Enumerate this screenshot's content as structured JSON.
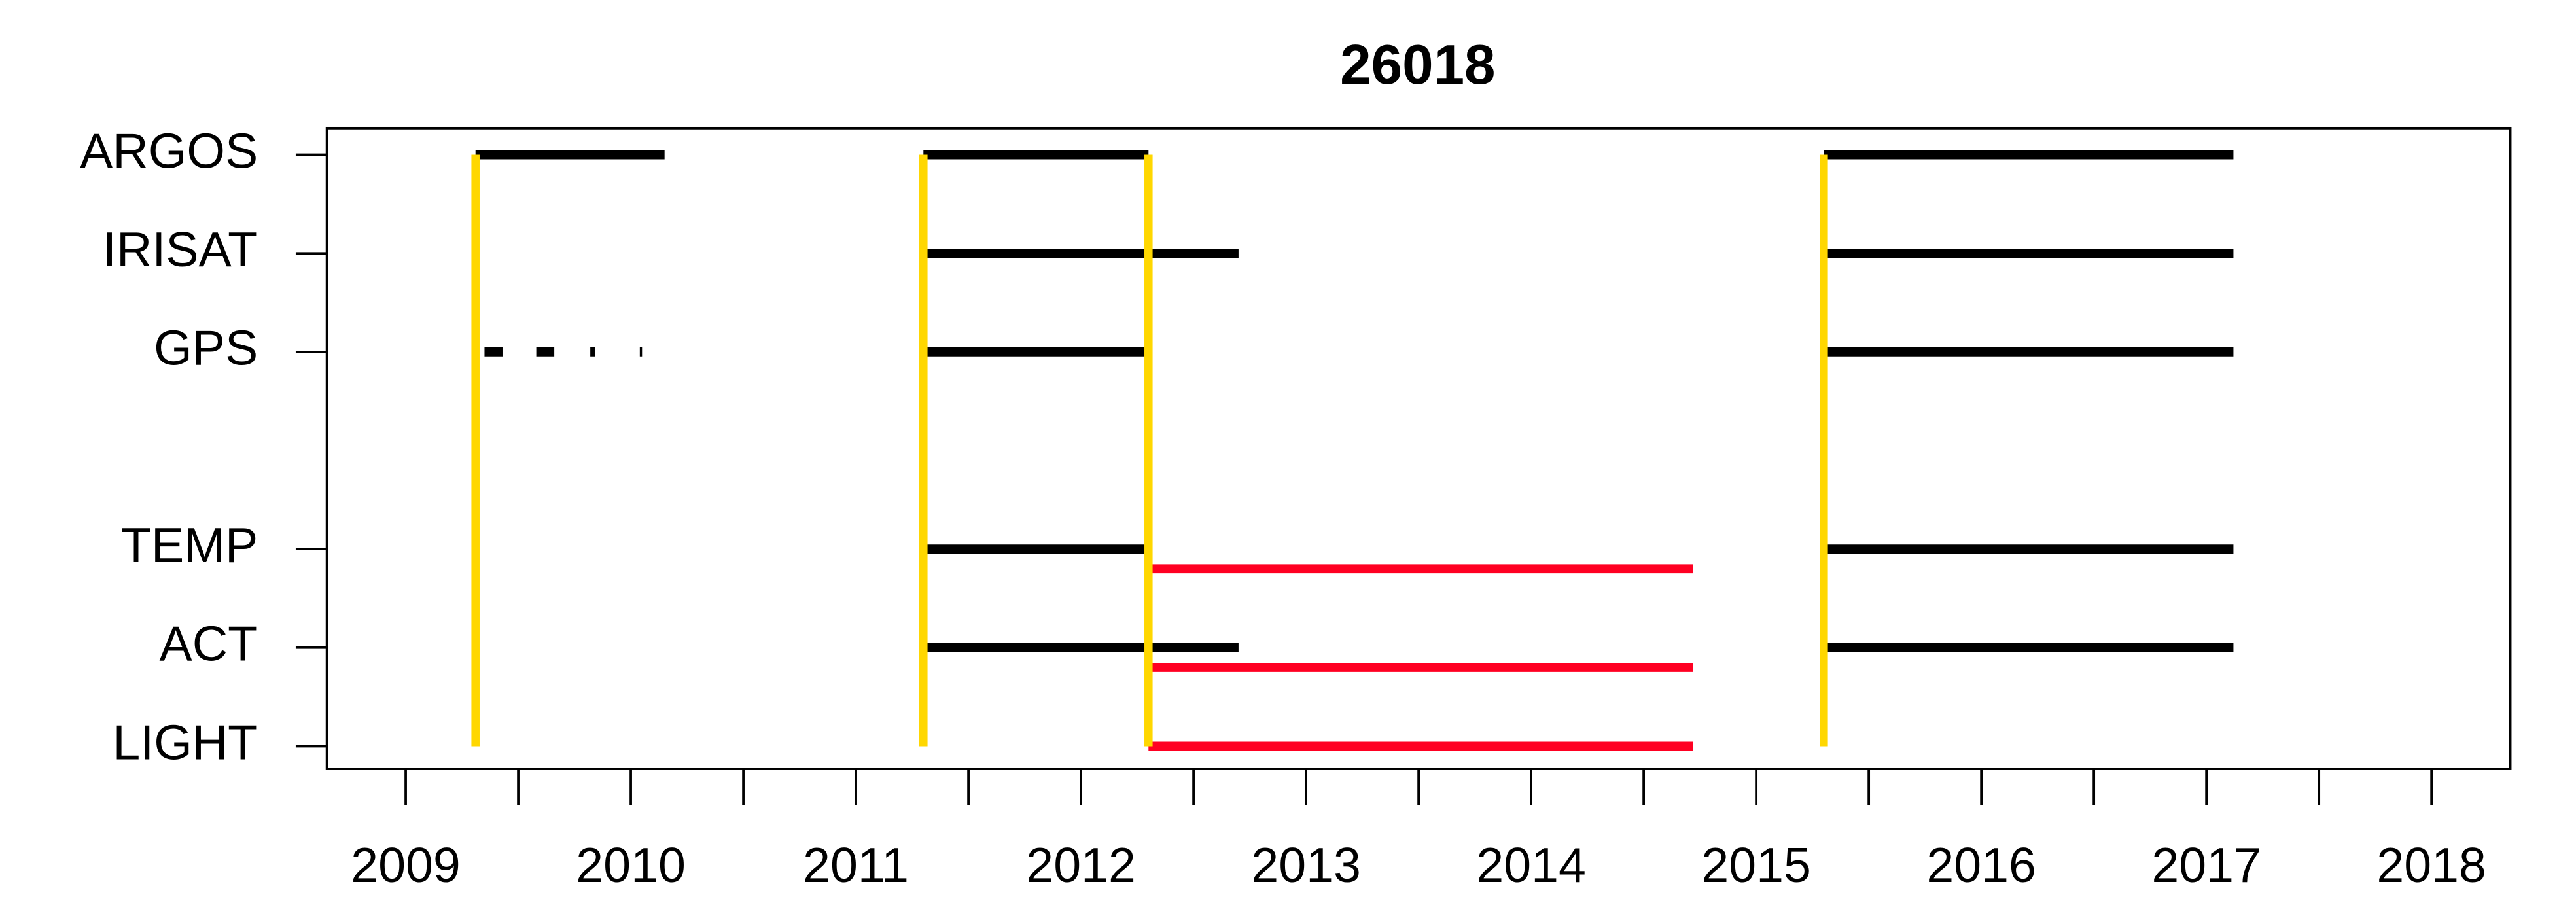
{
  "chart_data": {
    "type": "timeline",
    "title": "26018",
    "xlim": [
      2008.65,
      2018.35
    ],
    "ylim": [
      0.77,
      7.27
    ],
    "xticks": [
      2009,
      2010,
      2011,
      2012,
      2013,
      2014,
      2015,
      2016,
      2017,
      2018
    ],
    "xminorticks": [
      2009.5,
      2010.5,
      2011.5,
      2012.5,
      2013.5,
      2014.5,
      2015.5,
      2016.5,
      2017.5
    ],
    "yticks": [
      {
        "value": 7,
        "label": "ARGOS"
      },
      {
        "value": 6,
        "label": "IRISAT"
      },
      {
        "value": 5,
        "label": "GPS"
      },
      {
        "value": 3,
        "label": "TEMP"
      },
      {
        "value": 2,
        "label": "ACT"
      },
      {
        "value": 1,
        "label": "LIGHT"
      }
    ],
    "series": [
      {
        "color": "#000000",
        "segments": [
          {
            "y": 7,
            "x": [
              2009.31,
              2010.15
            ]
          },
          {
            "y": 7,
            "x": [
              2011.3,
              2012.3
            ]
          },
          {
            "y": 7,
            "x": [
              2015.3,
              2017.12
            ]
          },
          {
            "y": 6,
            "x": [
              2011.3,
              2012.7
            ]
          },
          {
            "y": 6,
            "x": [
              2015.3,
              2017.12
            ]
          },
          {
            "y": 5,
            "x": [
              2009.35,
              2009.43
            ]
          },
          {
            "y": 5,
            "x": [
              2009.58,
              2009.66
            ]
          },
          {
            "y": 5,
            "x": [
              2009.82,
              2009.84
            ]
          },
          {
            "y": 5,
            "x": [
              2010.04,
              2010.05
            ]
          },
          {
            "y": 5,
            "x": [
              2011.3,
              2012.3
            ]
          },
          {
            "y": 5,
            "x": [
              2015.3,
              2017.12
            ]
          },
          {
            "y": 3,
            "x": [
              2011.3,
              2012.3
            ]
          },
          {
            "y": 3,
            "x": [
              2015.3,
              2017.12
            ]
          },
          {
            "y": 2,
            "x": [
              2011.3,
              2012.7
            ]
          },
          {
            "y": 2,
            "x": [
              2015.3,
              2017.12
            ]
          }
        ]
      },
      {
        "color": "#ff0022",
        "segments": [
          {
            "y": 2.8,
            "x": [
              2012.3,
              2014.72
            ]
          },
          {
            "y": 1.8,
            "x": [
              2012.3,
              2014.72
            ]
          },
          {
            "y": 1,
            "x": [
              2012.3,
              2014.72
            ]
          }
        ]
      }
    ],
    "vlines": {
      "color": "#ffd700",
      "span": [
        1,
        7
      ],
      "x": [
        2009.31,
        2011.3,
        2012.3,
        2015.3
      ]
    }
  }
}
